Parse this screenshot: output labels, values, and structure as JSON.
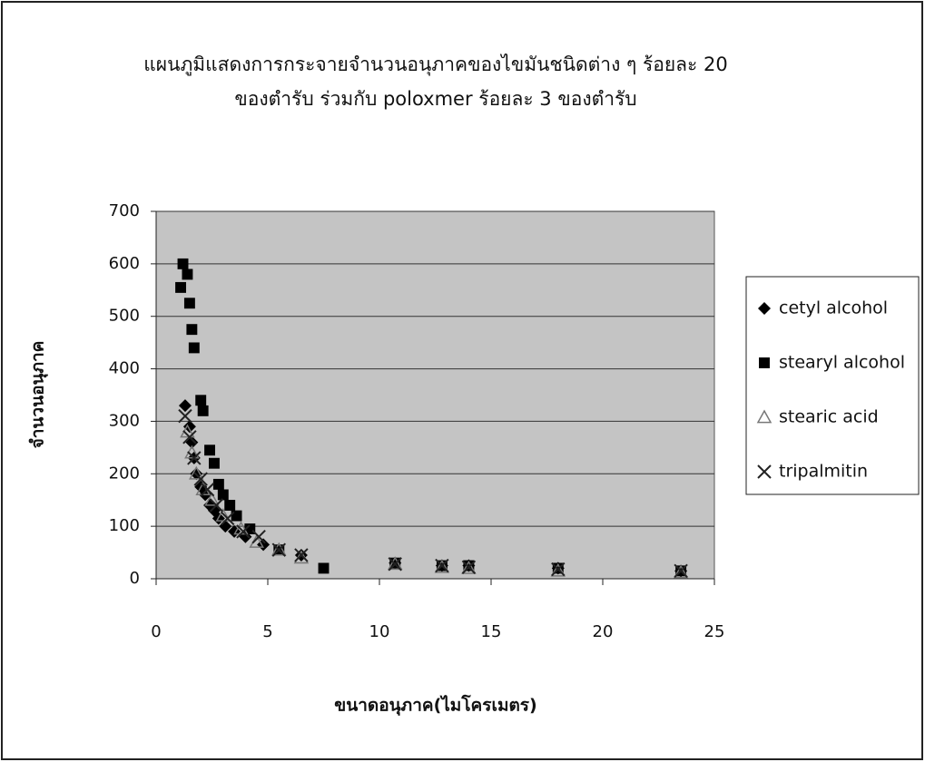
{
  "chart_data": {
    "type": "scatter",
    "title": "แผนภูมิแสดงการกระจายจำนวนอนุภาคของไขมันชนิดต่าง ๆ ร้อยละ 20",
    "subtitle": "ของตำรับ ร่วมกับ poloxmer ร้อยละ 3 ของตำรับ",
    "x_label": "ขนาดอนุภาค(ไมโครเมตร)",
    "y_label": "จำนวนอนุภาค",
    "xlim": [
      0,
      25
    ],
    "xticks": [
      0,
      5,
      10,
      15,
      20,
      25
    ],
    "ylim": [
      0,
      700
    ],
    "yticks": [
      0,
      100,
      200,
      300,
      400,
      500,
      600,
      700
    ],
    "grid": true,
    "legend": "right",
    "series": [
      {
        "name": "cetyl alcohol",
        "color": "#000000",
        "marker": "diamond",
        "x": [
          1.3,
          1.5,
          1.6,
          1.7,
          1.8,
          2.0,
          2.2,
          2.4,
          2.6,
          2.8,
          3.1,
          3.5,
          4.0,
          4.8,
          6.5,
          10.7,
          12.8,
          14.0,
          18.0,
          23.5
        ],
        "values": [
          330,
          290,
          260,
          230,
          200,
          175,
          160,
          140,
          130,
          115,
          100,
          90,
          80,
          65,
          45,
          30,
          25,
          25,
          20,
          15
        ]
      },
      {
        "name": "stearyl alcohol",
        "color": "#000000",
        "marker": "square",
        "x": [
          1.2,
          1.4,
          1.1,
          1.5,
          1.6,
          1.7,
          2.0,
          2.1,
          2.4,
          2.6,
          2.8,
          3.0,
          3.3,
          3.6,
          4.2,
          5.5,
          7.5,
          10.7,
          12.8,
          14.0,
          18.0,
          23.5
        ],
        "values": [
          600,
          580,
          555,
          525,
          475,
          440,
          340,
          320,
          245,
          220,
          180,
          160,
          140,
          120,
          95,
          55,
          20,
          30,
          25,
          25,
          20,
          15
        ]
      },
      {
        "name": "stearic acid",
        "color": "#777777",
        "marker": "triangle",
        "x": [
          1.4,
          1.6,
          1.8,
          2.1,
          2.5,
          3.0,
          3.8,
          4.5,
          5.5,
          6.5,
          10.7,
          12.8,
          14.0,
          18.0,
          23.5
        ],
        "values": [
          280,
          240,
          200,
          170,
          150,
          120,
          95,
          70,
          55,
          40,
          28,
          22,
          20,
          15,
          12
        ]
      },
      {
        "name": "tripalmitin",
        "color": "#222222",
        "marker": "cross",
        "x": [
          1.3,
          1.5,
          1.7,
          2.0,
          2.3,
          2.7,
          3.2,
          3.9,
          4.6,
          5.5,
          6.5,
          10.7,
          12.8,
          14.0,
          18.0,
          23.5
        ],
        "values": [
          310,
          270,
          230,
          190,
          170,
          140,
          115,
          90,
          80,
          55,
          45,
          28,
          25,
          22,
          18,
          15
        ]
      }
    ]
  }
}
